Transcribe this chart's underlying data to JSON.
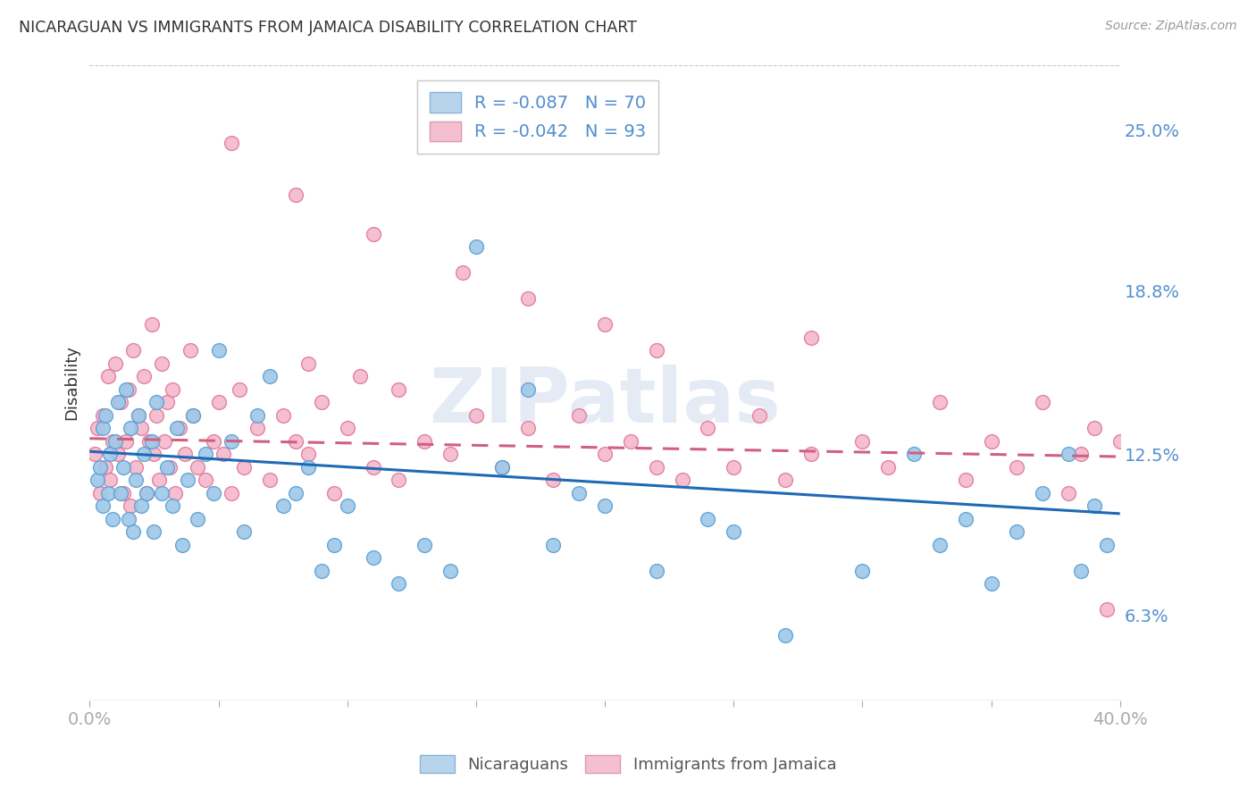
{
  "title": "NICARAGUAN VS IMMIGRANTS FROM JAMAICA DISABILITY CORRELATION CHART",
  "source": "Source: ZipAtlas.com",
  "ylabel": "Disability",
  "ytick_labels": [
    "6.3%",
    "12.5%",
    "18.8%",
    "25.0%"
  ],
  "ytick_values": [
    6.3,
    12.5,
    18.8,
    25.0
  ],
  "xlim": [
    0.0,
    40.0
  ],
  "ylim": [
    3.0,
    27.5
  ],
  "legend_bottom": [
    "Nicaraguans",
    "Immigrants from Jamaica"
  ],
  "series_blue": {
    "R": -0.087,
    "N": 70,
    "color": "#9ec8e8",
    "edge_color": "#5a9fd4",
    "trendline_color": "#1f6ab5"
  },
  "series_pink": {
    "R": -0.042,
    "N": 93,
    "color": "#f4b8cc",
    "edge_color": "#e07898",
    "trendline_color": "#d06080"
  },
  "watermark": "ZIPatlas",
  "background_color": "#ffffff",
  "grid_color": "#c8c8c8",
  "title_color": "#333333",
  "axis_label_color": "#5590d0",
  "tick_label_color": "#5590d0",
  "trendline_blue_start": 12.6,
  "trendline_blue_end": 10.2,
  "trendline_pink_start": 13.1,
  "trendline_pink_end": 12.4,
  "blue_x": [
    0.3,
    0.4,
    0.5,
    0.5,
    0.6,
    0.7,
    0.8,
    0.9,
    1.0,
    1.1,
    1.2,
    1.3,
    1.4,
    1.5,
    1.6,
    1.7,
    1.8,
    1.9,
    2.0,
    2.1,
    2.2,
    2.4,
    2.5,
    2.6,
    2.8,
    3.0,
    3.2,
    3.4,
    3.6,
    3.8,
    4.0,
    4.2,
    4.5,
    4.8,
    5.0,
    5.5,
    6.0,
    6.5,
    7.0,
    7.5,
    8.0,
    8.5,
    9.0,
    9.5,
    10.0,
    11.0,
    12.0,
    13.0,
    14.0,
    15.0,
    16.0,
    17.0,
    18.0,
    19.0,
    20.0,
    22.0,
    24.0,
    25.0,
    27.0,
    30.0,
    32.0,
    33.0,
    34.0,
    35.0,
    36.0,
    37.0,
    38.0,
    38.5,
    39.0,
    39.5
  ],
  "blue_y": [
    11.5,
    12.0,
    13.5,
    10.5,
    14.0,
    11.0,
    12.5,
    10.0,
    13.0,
    14.5,
    11.0,
    12.0,
    15.0,
    10.0,
    13.5,
    9.5,
    11.5,
    14.0,
    10.5,
    12.5,
    11.0,
    13.0,
    9.5,
    14.5,
    11.0,
    12.0,
    10.5,
    13.5,
    9.0,
    11.5,
    14.0,
    10.0,
    12.5,
    11.0,
    16.5,
    13.0,
    9.5,
    14.0,
    15.5,
    10.5,
    11.0,
    12.0,
    8.0,
    9.0,
    10.5,
    8.5,
    7.5,
    9.0,
    8.0,
    20.5,
    12.0,
    15.0,
    9.0,
    11.0,
    10.5,
    8.0,
    10.0,
    9.5,
    5.5,
    8.0,
    12.5,
    9.0,
    10.0,
    7.5,
    9.5,
    11.0,
    12.5,
    8.0,
    10.5,
    9.0
  ],
  "pink_x": [
    0.2,
    0.3,
    0.4,
    0.5,
    0.6,
    0.7,
    0.8,
    0.9,
    1.0,
    1.1,
    1.2,
    1.3,
    1.4,
    1.5,
    1.6,
    1.7,
    1.8,
    1.9,
    2.0,
    2.1,
    2.2,
    2.3,
    2.4,
    2.5,
    2.6,
    2.7,
    2.8,
    2.9,
    3.0,
    3.1,
    3.2,
    3.3,
    3.5,
    3.7,
    3.9,
    4.0,
    4.2,
    4.5,
    4.8,
    5.0,
    5.2,
    5.5,
    5.8,
    6.0,
    6.5,
    7.0,
    7.5,
    8.0,
    8.5,
    9.0,
    9.5,
    10.0,
    11.0,
    12.0,
    13.0,
    14.0,
    15.0,
    16.0,
    17.0,
    18.0,
    19.0,
    20.0,
    21.0,
    22.0,
    23.0,
    24.0,
    25.0,
    26.0,
    27.0,
    28.0,
    30.0,
    31.0,
    33.0,
    34.0,
    35.0,
    36.0,
    37.0,
    38.0,
    38.5,
    39.0,
    39.5,
    40.0,
    5.5,
    11.0,
    8.0,
    14.5,
    20.0,
    28.0,
    17.0,
    22.0,
    10.5,
    8.5,
    12.0
  ],
  "pink_y": [
    12.5,
    13.5,
    11.0,
    14.0,
    12.0,
    15.5,
    11.5,
    13.0,
    16.0,
    12.5,
    14.5,
    11.0,
    13.0,
    15.0,
    10.5,
    16.5,
    12.0,
    14.0,
    13.5,
    15.5,
    11.0,
    13.0,
    17.5,
    12.5,
    14.0,
    11.5,
    16.0,
    13.0,
    14.5,
    12.0,
    15.0,
    11.0,
    13.5,
    12.5,
    16.5,
    14.0,
    12.0,
    11.5,
    13.0,
    14.5,
    12.5,
    11.0,
    15.0,
    12.0,
    13.5,
    11.5,
    14.0,
    13.0,
    12.5,
    14.5,
    11.0,
    13.5,
    12.0,
    11.5,
    13.0,
    12.5,
    14.0,
    12.0,
    13.5,
    11.5,
    14.0,
    12.5,
    13.0,
    12.0,
    11.5,
    13.5,
    12.0,
    14.0,
    11.5,
    12.5,
    13.0,
    12.0,
    14.5,
    11.5,
    13.0,
    12.0,
    14.5,
    11.0,
    12.5,
    13.5,
    6.5,
    13.0,
    24.5,
    21.0,
    22.5,
    19.5,
    17.5,
    17.0,
    18.5,
    16.5,
    15.5,
    16.0,
    15.0
  ]
}
